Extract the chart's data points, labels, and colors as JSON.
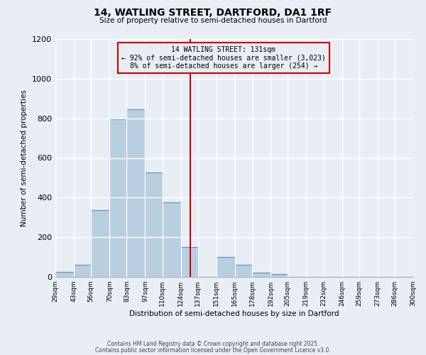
{
  "title": "14, WATLING STREET, DARTFORD, DA1 1RF",
  "subtitle": "Size of property relative to semi-detached houses in Dartford",
  "xlabel": "Distribution of semi-detached houses by size in Dartford",
  "ylabel": "Number of semi-detached properties",
  "bin_labels": [
    "29sqm",
    "43sqm",
    "56sqm",
    "70sqm",
    "83sqm",
    "97sqm",
    "110sqm",
    "124sqm",
    "137sqm",
    "151sqm",
    "165sqm",
    "178sqm",
    "192sqm",
    "205sqm",
    "219sqm",
    "232sqm",
    "246sqm",
    "259sqm",
    "273sqm",
    "286sqm",
    "300sqm"
  ],
  "bin_edges": [
    29,
    43,
    56,
    70,
    83,
    97,
    110,
    124,
    137,
    151,
    165,
    178,
    192,
    205,
    219,
    232,
    246,
    259,
    273,
    286,
    300
  ],
  "bar_heights": [
    25,
    60,
    335,
    795,
    845,
    525,
    375,
    150,
    0,
    100,
    60,
    20,
    15,
    0,
    0,
    0,
    0,
    0,
    0,
    0
  ],
  "bar_color": "#b8cfe0",
  "bar_edge_color": "#6090b8",
  "vline_x": 131,
  "vline_color": "#cc0000",
  "annotation_title": "14 WATLING STREET: 131sqm",
  "annotation_line1": "← 92% of semi-detached houses are smaller (3,023)",
  "annotation_line2": "8% of semi-detached houses are larger (254) →",
  "annotation_box_color": "#cc0000",
  "ylim": [
    0,
    1200
  ],
  "yticks": [
    0,
    200,
    400,
    600,
    800,
    1000,
    1200
  ],
  "footer1": "Contains HM Land Registry data © Crown copyright and database right 2025.",
  "footer2": "Contains public sector information licensed under the Open Government Licence v3.0.",
  "background_color": "#e8eef4",
  "grid_color": "#ffffff"
}
